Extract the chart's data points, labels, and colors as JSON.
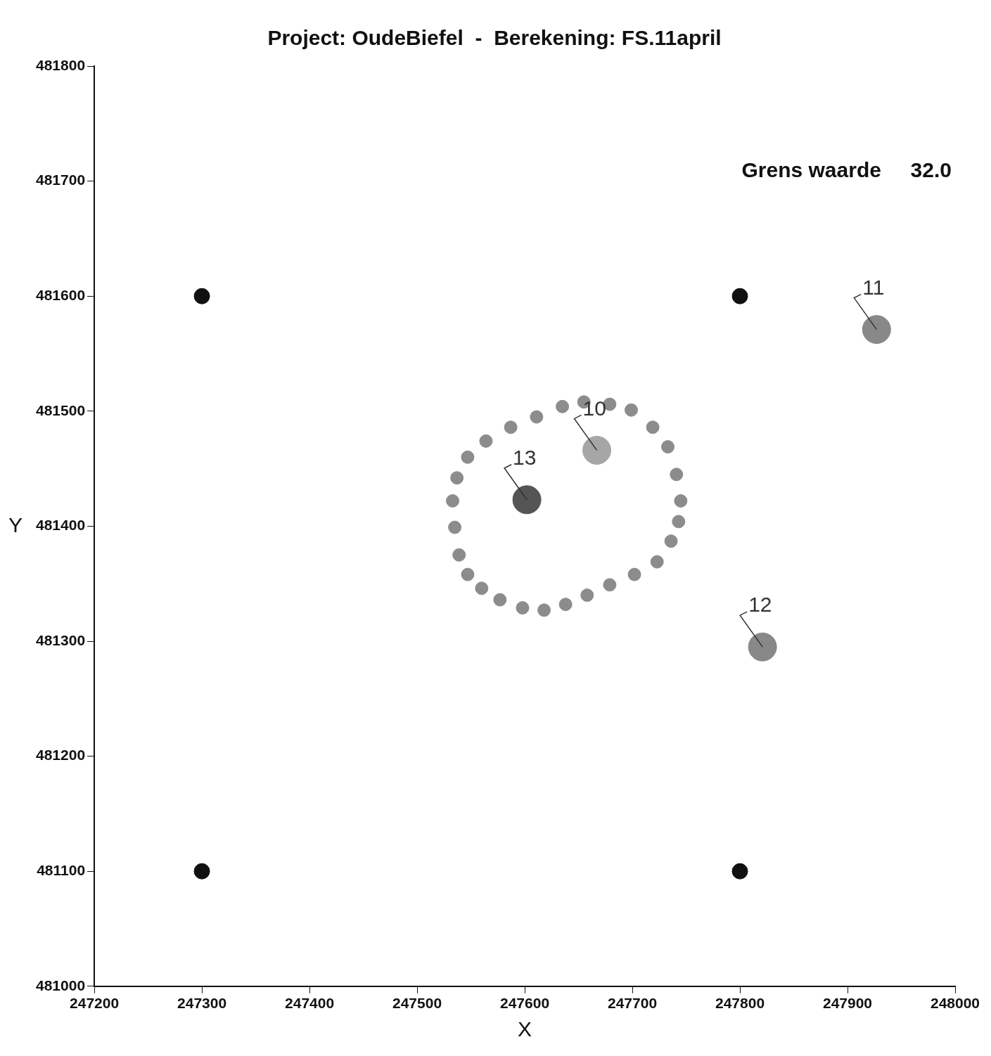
{
  "chart_data": {
    "type": "scatter",
    "title": "Project: OudeBiefel  -  Berekening: FS.11april",
    "xlabel": "X",
    "ylabel": "Y",
    "xlim": [
      247200,
      248000
    ],
    "xticks": [
      247200,
      247300,
      247400,
      247500,
      247600,
      247700,
      247800,
      247900,
      248000
    ],
    "ylim": [
      481000,
      481800
    ],
    "yticks": [
      481000,
      481100,
      481200,
      481300,
      481400,
      481500,
      481600,
      481700,
      481800
    ],
    "grid": false,
    "legend": false,
    "marker": "circle",
    "series": [
      {
        "type": "scatter",
        "color": "#8c8c8c",
        "x": [
          247655,
          247679,
          247699,
          247719,
          247733,
          247741,
          247745,
          247743,
          247736,
          247723,
          247702,
          247679,
          247658,
          247638,
          247618,
          247598,
          247577,
          247560,
          247547,
          247539,
          247535,
          247533,
          247537,
          247547,
          247564,
          247587,
          247611,
          247635
        ],
        "values": [
          481508,
          481506,
          481501,
          481486,
          481469,
          481445,
          481422,
          481404,
          481387,
          481369,
          481358,
          481349,
          481340,
          481332,
          481327,
          481329,
          481336,
          481346,
          481358,
          481375,
          481399,
          481422,
          481442,
          481460,
          481474,
          481486,
          481495,
          481504
        ]
      },
      {
        "type": "scatter",
        "color": "#111111",
        "x": [
          247300,
          247800,
          247300,
          247800
        ],
        "values": [
          481600,
          481600,
          481100,
          481100
        ]
      },
      {
        "type": "scatter",
        "colors": [
          "#a6a6a6",
          "#888888",
          "#888888",
          "#555555"
        ],
        "x": [
          247667,
          247927,
          247821,
          247602
        ],
        "values": [
          481466,
          481571,
          481295,
          481423
        ]
      }
    ],
    "annotations": [
      {
        "text": "10",
        "x": 247667,
        "y": 481466
      },
      {
        "text": "11",
        "x": 247927,
        "y": 481571
      },
      {
        "text": "12",
        "x": 247821,
        "y": 481295
      },
      {
        "text": "13",
        "x": 247602,
        "y": 481423
      },
      "Grens waarde     32.0"
    ]
  }
}
